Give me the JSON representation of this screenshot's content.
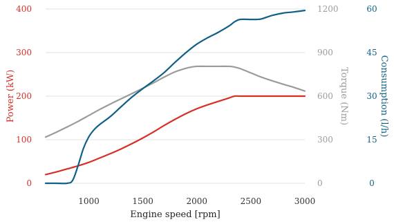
{
  "chart_data": {
    "type": "line",
    "title": "",
    "xlabel": "Engine speed [rpm]",
    "xlim": [
      600,
      3000
    ],
    "x_ticks": [
      1000,
      1500,
      2000,
      2500,
      3000
    ],
    "grid": true,
    "legend": "none",
    "axes": [
      {
        "id": "power",
        "label": "Power (kW)",
        "side": "left",
        "ylim": [
          0,
          400
        ],
        "ticks": [
          0,
          100,
          200,
          300,
          400
        ],
        "color": "#d62f26"
      },
      {
        "id": "torque",
        "label": "Torque (Nm)",
        "side": "right",
        "ylim": [
          0,
          1200
        ],
        "ticks": [
          0,
          300,
          600,
          900,
          1200
        ],
        "color": "#9b9b9b"
      },
      {
        "id": "consumption",
        "label": "Consumption (l/h)",
        "side": "right-outer",
        "ylim": [
          0,
          60
        ],
        "ticks": [
          0,
          15,
          30,
          45,
          60
        ],
        "color": "#0f5f86"
      }
    ],
    "series": [
      {
        "axis": "power",
        "color": "#d62f26",
        "x": [
          600,
          700,
          800,
          900,
          1000,
          1100,
          1200,
          1300,
          1400,
          1500,
          1600,
          1700,
          1800,
          1900,
          2000,
          2100,
          2200,
          2300,
          2350,
          2400,
          2500,
          2600,
          2700,
          2800,
          2900,
          3000
        ],
        "y": [
          20,
          26,
          33,
          40,
          48,
          58,
          68,
          79,
          91,
          104,
          118,
          133,
          147,
          160,
          171,
          180,
          188,
          196,
          200,
          200,
          200,
          200,
          200,
          200,
          200,
          200
        ]
      },
      {
        "axis": "torque",
        "color": "#9b9b9b",
        "x": [
          600,
          700,
          800,
          900,
          1000,
          1100,
          1200,
          1300,
          1400,
          1500,
          1600,
          1700,
          1800,
          1900,
          1950,
          2000,
          2100,
          2200,
          2300,
          2350,
          2400,
          2500,
          2600,
          2700,
          2800,
          2900,
          3000
        ],
        "y": [
          318,
          352,
          388,
          426,
          467,
          508,
          546,
          582,
          618,
          654,
          692,
          732,
          768,
          792,
          800,
          805,
          805,
          805,
          805,
          800,
          790,
          760,
          730,
          705,
          682,
          660,
          635
        ]
      },
      {
        "axis": "consumption",
        "color": "#0f5f86",
        "x": [
          600,
          700,
          800,
          850,
          900,
          950,
          1000,
          1050,
          1100,
          1200,
          1300,
          1400,
          1500,
          1600,
          1700,
          1800,
          1900,
          2000,
          2100,
          2200,
          2300,
          2350,
          2400,
          2500,
          2550,
          2600,
          2700,
          2800,
          2900,
          3000
        ],
        "y": [
          0,
          0,
          0,
          1,
          6,
          12,
          16,
          18.5,
          20.2,
          23,
          26.4,
          29.7,
          32.6,
          35.3,
          38.2,
          41.7,
          45,
          47.9,
          50.1,
          52,
          54.2,
          55.6,
          56.4,
          56.4,
          56.4,
          56.6,
          57.8,
          58.6,
          59,
          59.5
        ]
      }
    ]
  }
}
